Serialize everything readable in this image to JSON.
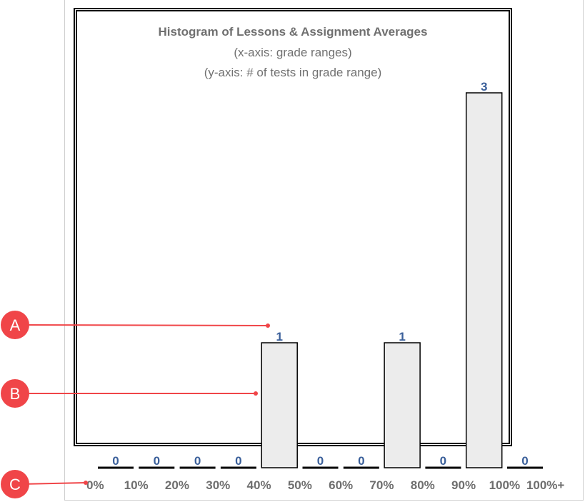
{
  "chart_data": {
    "type": "bar",
    "title": "Histogram of Lessons & Assignment Averages",
    "subtitle_lines": [
      "(x-axis: grade ranges)",
      "(y-axis: # of tests in grade range)"
    ],
    "categories": [
      "0%",
      "10%",
      "20%",
      "30%",
      "40%",
      "50%",
      "60%",
      "70%",
      "80%",
      "90%",
      "100%"
    ],
    "values": [
      0,
      0,
      0,
      0,
      1,
      0,
      0,
      1,
      0,
      3,
      0
    ],
    "tick_labels": [
      "0%",
      "10%",
      "20%",
      "30%",
      "40%",
      "50%",
      "60%",
      "70%",
      "80%",
      "90%",
      "100%",
      "100%+"
    ],
    "ylim": [
      0,
      3
    ],
    "colors": {
      "bar_fill": "#ececec",
      "bar_stroke": "#000000",
      "value_label": "#3a5f9a",
      "tick_label": "#6e6e6e",
      "title": "#707070",
      "callout": "#f04548"
    }
  },
  "callouts": [
    {
      "letter": "A",
      "target": "value-label"
    },
    {
      "letter": "B",
      "target": "bar"
    },
    {
      "letter": "C",
      "target": "tick-label"
    }
  ]
}
